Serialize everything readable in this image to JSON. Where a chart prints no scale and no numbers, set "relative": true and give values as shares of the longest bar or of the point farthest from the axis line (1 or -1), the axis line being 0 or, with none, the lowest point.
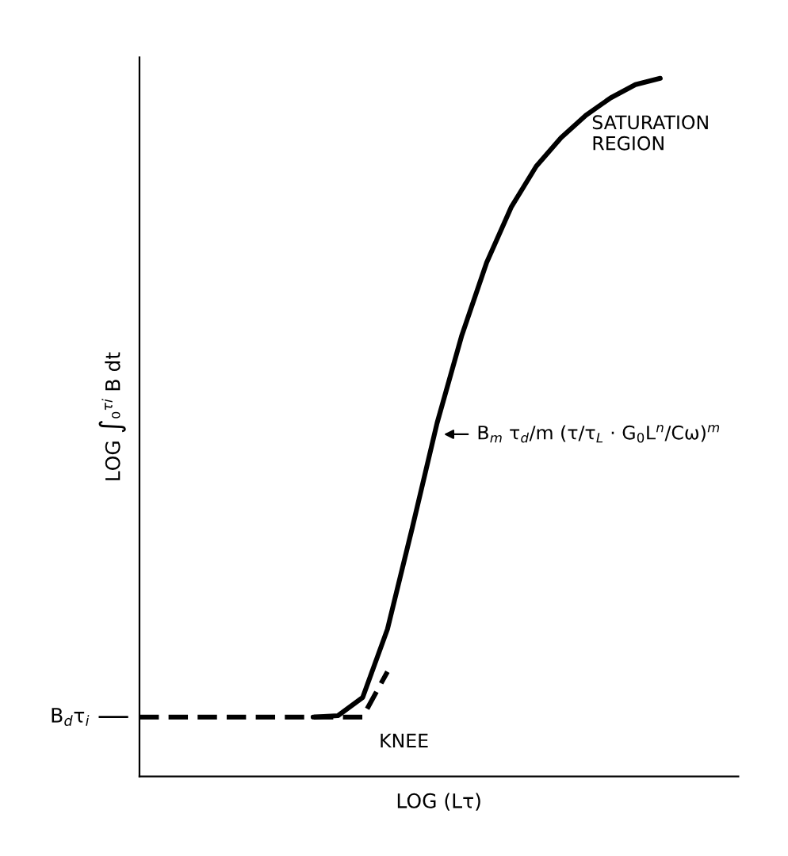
{
  "chart_data": {
    "type": "line",
    "relative": true,
    "xlabel": "LOG (Lτ)",
    "ylabel": "LOG ∫₀$^{τi}$ B dt",
    "categories": [
      null,
      null,
      null,
      null,
      null,
      null,
      null,
      null,
      null,
      null,
      null,
      null,
      null,
      null,
      null,
      null,
      null,
      null,
      null,
      null,
      null,
      null
    ],
    "series": [
      {
        "color": "#000000",
        "line_style": "solid",
        "values": [
          null,
          null,
          null,
          null,
          null,
          null,
          null,
          0.085,
          0.087,
          0.113,
          0.211,
          0.356,
          0.506,
          0.632,
          0.736,
          0.816,
          0.874,
          0.915,
          0.947,
          0.972,
          0.991,
          1.0
        ]
      },
      {
        "color": "#000000",
        "line_style": "dashed",
        "values": [
          0.085,
          0.085,
          0.085,
          0.085,
          0.085,
          0.085,
          0.085,
          0.085,
          0.085,
          0.085,
          0.15,
          null,
          null,
          null,
          null,
          null,
          null,
          null,
          null,
          null,
          null,
          null
        ]
      }
    ],
    "ref_lines": [
      {
        "axis": "y",
        "value": 0.085,
        "label": "B$_{d}$τ$_{i}$"
      }
    ],
    "annotations": [
      "SATURATION\nREGION",
      "KNEE",
      "B$_{m}$ τ$_{d}$/m (τ/τ$_{L}$ · G$_{0}$L$^{n}$/Cω)$^{m}$"
    ],
    "grid": false,
    "legend": false,
    "marker": "none"
  }
}
